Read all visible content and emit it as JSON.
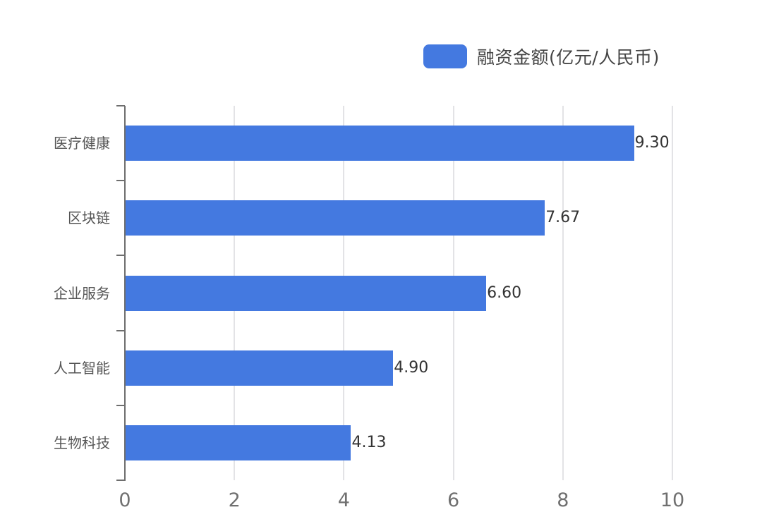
{
  "legend": {
    "label": "融资金额(亿元/人民币)",
    "color": "#4479e0"
  },
  "chart_data": {
    "type": "bar",
    "orientation": "horizontal",
    "title": "",
    "categories": [
      "医疗健康",
      "区块链",
      "企业服务",
      "人工智能",
      "生物科技"
    ],
    "series": [
      {
        "name": "融资金额(亿元/人民币)",
        "values": [
          9.3,
          7.67,
          6.6,
          4.9,
          4.13
        ],
        "color": "#4479e0"
      }
    ],
    "value_labels": [
      "9.30",
      "7.67",
      "6.60",
      "4.90",
      "4.13"
    ],
    "xlabel": "",
    "ylabel": "",
    "xlim": [
      0,
      10
    ],
    "x_ticks": [
      "0",
      "2",
      "4",
      "6",
      "8",
      "10"
    ],
    "grid": "vertical",
    "legend_position": "top-right"
  }
}
